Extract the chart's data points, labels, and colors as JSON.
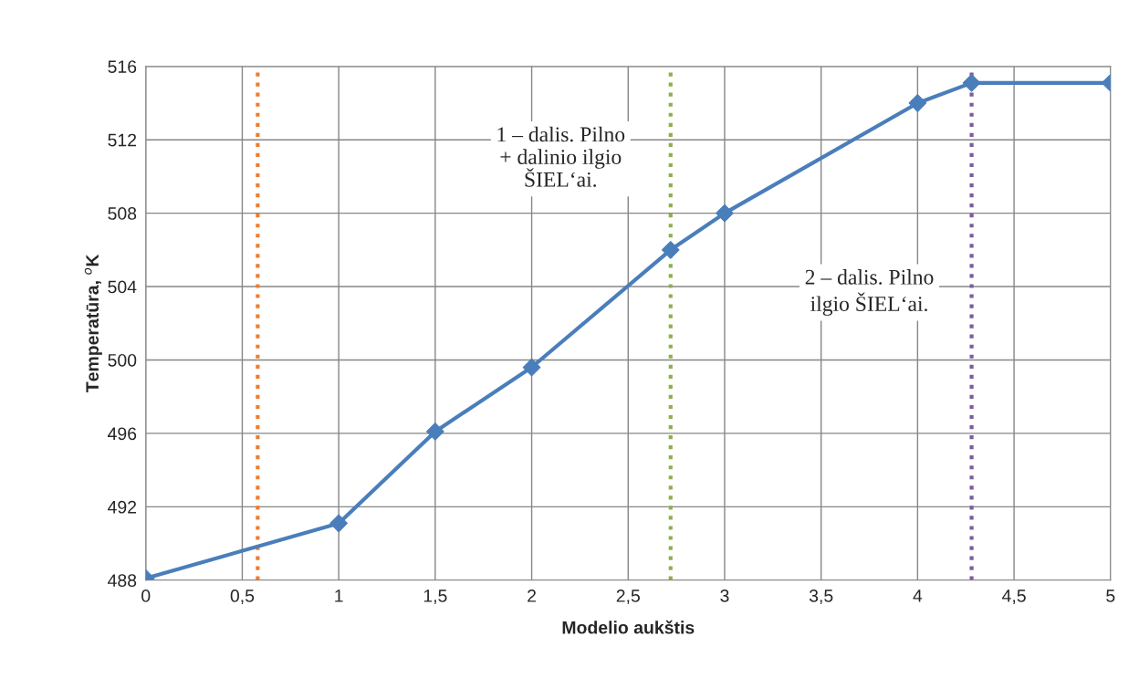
{
  "chart_data": {
    "type": "line",
    "xlabel": "Modelio aukštis",
    "ylabel": "Temperatūra, $^{o}$K",
    "x": [
      0,
      1,
      1.5,
      2,
      2.72,
      3,
      4,
      4.28,
      5
    ],
    "series": [
      {
        "color": "#4a7ebb",
        "values": [
          488.1,
          491.1,
          496.1,
          499.6,
          506.0,
          508.0,
          514.0,
          515.1,
          515.1
        ]
      }
    ],
    "xlim": [
      0,
      5
    ],
    "xticks": [
      0,
      {
        "value": 0.5,
        "label": "0,5"
      },
      1,
      {
        "value": 1.5,
        "label": "1,5"
      },
      2,
      {
        "value": 2.5,
        "label": "2,5"
      },
      3,
      {
        "value": 3.5,
        "label": "3,5"
      },
      4,
      {
        "value": 4.5,
        "label": "4,5"
      },
      5
    ],
    "ylim": [
      488,
      516
    ],
    "yticks": [
      488,
      492,
      496,
      500,
      504,
      508,
      512,
      516
    ],
    "grid": true,
    "marker": "diamond",
    "line_style": "solid",
    "ref_lines": [
      {
        "axis": "x",
        "value": 0.58,
        "color": "#ed7d31",
        "line_style": "dotted"
      },
      {
        "axis": "x",
        "value": 2.72,
        "color": "#8db04a",
        "line_style": "dotted"
      },
      {
        "axis": "x",
        "value": 4.28,
        "color": "#7b5a9e",
        "line_style": "dotted"
      }
    ],
    "annotations": [
      "1 – dalis. Pilno\n+ dalinio ilgio\nŠIEL‘ai.",
      "2 – dalis. Pilno\nilgio ŠIEL‘ai."
    ]
  }
}
